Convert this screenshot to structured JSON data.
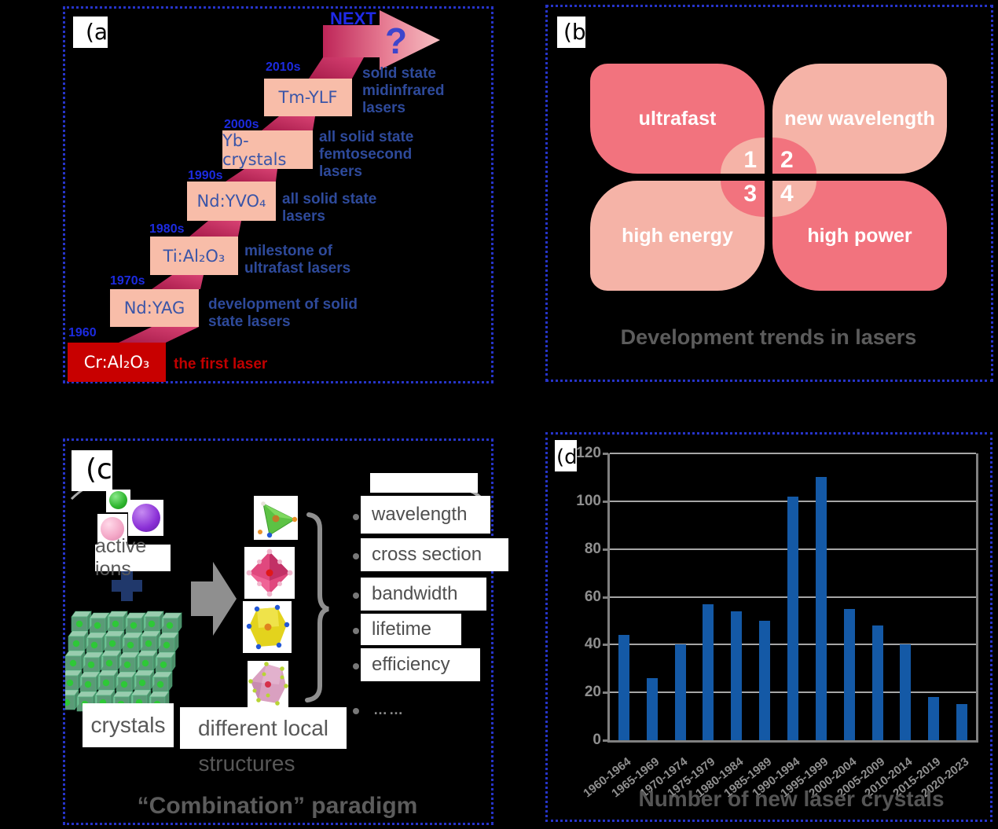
{
  "panels": {
    "a": {
      "label": "(a",
      "next_label": "NEXT",
      "question_mark": "?",
      "steps": [
        {
          "year": "1960",
          "crystal": "Cr:Al₂O₃",
          "note": "the first laser"
        },
        {
          "year": "1970s",
          "crystal": "Nd:YAG",
          "note": "development of solid state lasers"
        },
        {
          "year": "1980s",
          "crystal": "Ti:Al₂O₃",
          "note": "milestone of ultrafast lasers"
        },
        {
          "year": "1990s",
          "crystal": "Nd:YVO₄",
          "note": "all solid state lasers"
        },
        {
          "year": "2000s",
          "crystal": "Yb-crystals",
          "note": "all solid state femtosecond lasers"
        },
        {
          "year": "2010s",
          "crystal": "Tm-YLF",
          "note": "solid state midinfrared lasers"
        }
      ]
    },
    "b": {
      "label": "(b",
      "petals": [
        {
          "label": "ultrafast",
          "number": "1"
        },
        {
          "label": "new wavelength",
          "number": "2"
        },
        {
          "label": "high energy",
          "number": "3"
        },
        {
          "label": "high power",
          "number": "4"
        }
      ],
      "caption": "Development trends in lasers"
    },
    "c": {
      "label": "(c",
      "active_ions": "active ions",
      "plus": "+",
      "crystals": "crystals",
      "different_local_line1": "different local",
      "different_local_line2": "structures",
      "properties": [
        "wavelength",
        "cross section",
        "bandwidth",
        "lifetime",
        "efficiency"
      ],
      "more_dots": "……",
      "caption": "“Combination” paradigm"
    },
    "d": {
      "label": "(d"
    }
  },
  "chart_data": {
    "type": "bar",
    "title": "Number of new laser crystals",
    "categories": [
      "1960-1964",
      "1965-1969",
      "1970-1974",
      "1975-1979",
      "1980-1984",
      "1985-1989",
      "1990-1994",
      "1995-1999",
      "2000-2004",
      "2005-2009",
      "2010-2014",
      "2015-2019",
      "2020-2023"
    ],
    "values": [
      44,
      26,
      40,
      57,
      54,
      50,
      102,
      110,
      55,
      48,
      40,
      18,
      15
    ],
    "xlabel": "",
    "ylabel": "",
    "ylim": [
      0,
      120
    ],
    "ytick_step": 20,
    "grid": true,
    "legend": "none",
    "bar_color": "#1459A6"
  },
  "colors": {
    "panel_border_blue": "#2634C9",
    "year_blue": "#1C2BE0",
    "description_blue": "#2E4A9B",
    "step_box_salmon": "#F8BDA9",
    "first_laser_red": "#C80000",
    "ribbon_crimson": "#C32A5B",
    "petal_dark_pink": "#F2737E",
    "petal_light_pink": "#F5B3A7",
    "caption_gray": "#5C5C5C",
    "bar_blue": "#1459A6",
    "grid_gray": "#A6A6A6",
    "axis_gray": "#808080"
  }
}
